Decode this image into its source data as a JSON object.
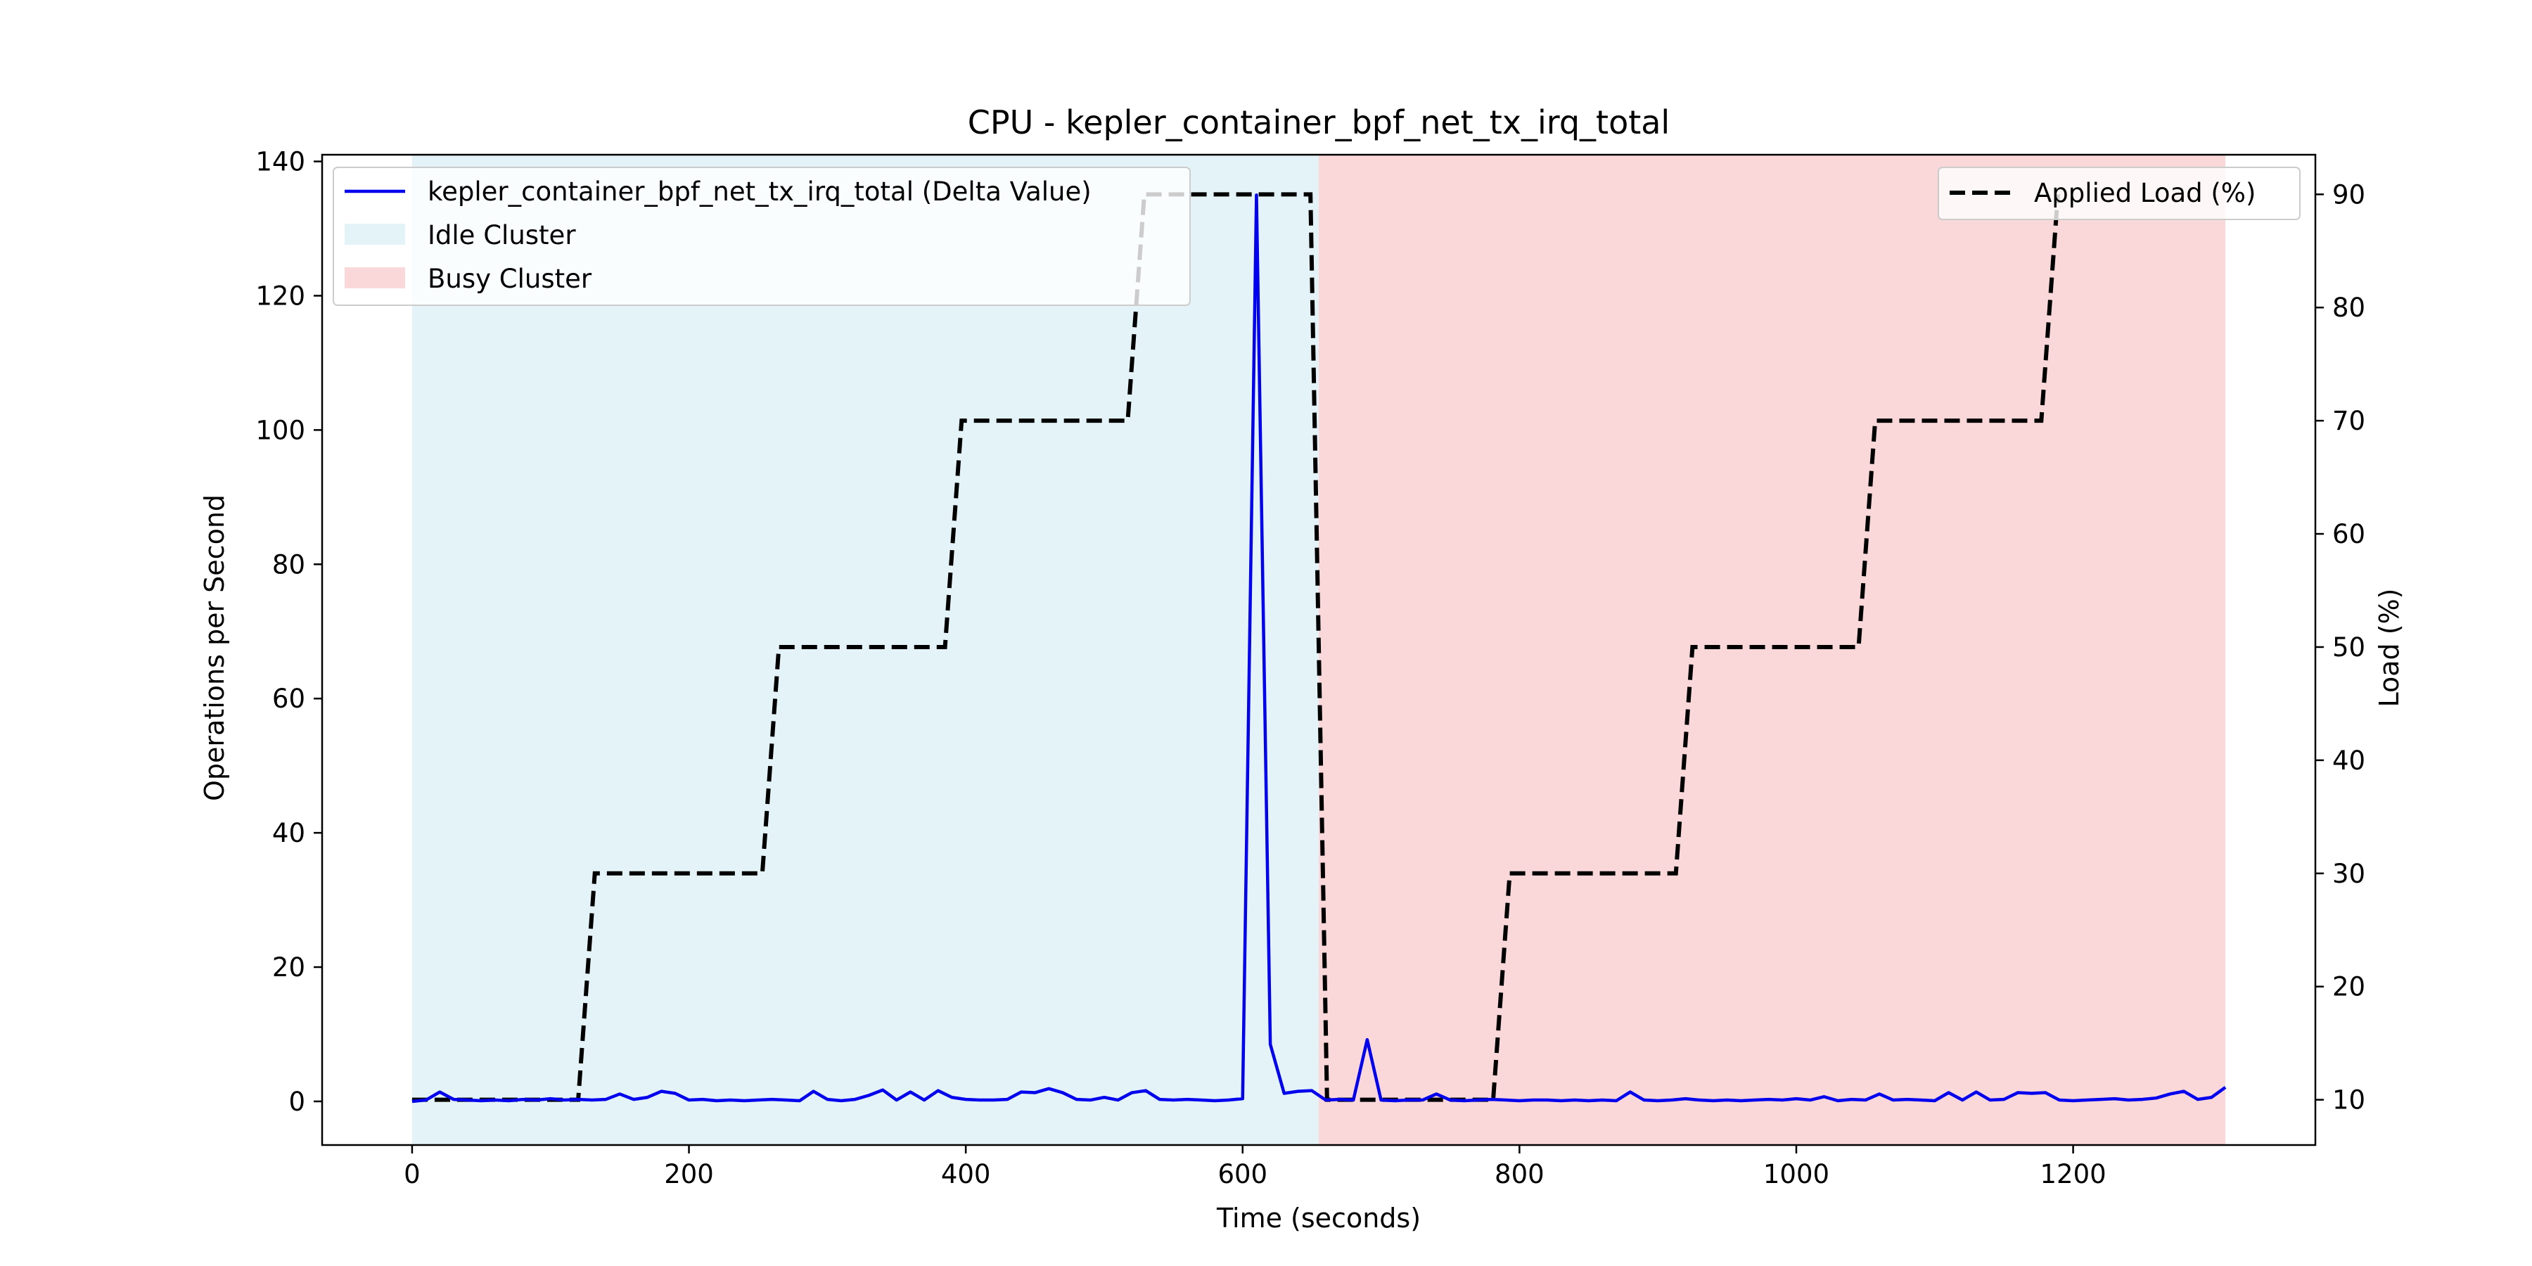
{
  "chart_data": {
    "type": "line",
    "title": "CPU - kepler_container_bpf_net_tx_irq_total",
    "xlabel": "Time (seconds)",
    "ylabel": "Operations per Second",
    "y2label": "Load (%)",
    "xlim": [
      -65,
      1375
    ],
    "ylim": [
      -6.5,
      141
    ],
    "y2lim": [
      6,
      93.5
    ],
    "xticks": [
      0,
      200,
      400,
      600,
      800,
      1000,
      1200
    ],
    "yticks": [
      0,
      20,
      40,
      60,
      80,
      100,
      120,
      140
    ],
    "y2ticks": [
      10,
      20,
      30,
      40,
      50,
      60,
      70,
      80,
      90
    ],
    "grid": false,
    "colors": {
      "metric": "#0000ee",
      "load": "#000000",
      "idle": "#e4f3f7",
      "busy": "#fad8d9",
      "ylabel": "#0000ee"
    },
    "regions": [
      {
        "name": "Idle Cluster",
        "x0": 0,
        "x1": 655,
        "color": "#e4f3f7"
      },
      {
        "name": "Busy Cluster",
        "x0": 655,
        "x1": 1310,
        "color": "#fad8d9"
      }
    ],
    "legend_left": {
      "placement": "upper-left",
      "entries": [
        {
          "label": "kepler_container_bpf_net_tx_irq_total (Delta Value)",
          "kind": "line"
        },
        {
          "label": "Idle Cluster",
          "kind": "patch-idle"
        },
        {
          "label": "Busy Cluster",
          "kind": "patch-busy"
        }
      ]
    },
    "legend_right": {
      "placement": "upper-right",
      "entries": [
        {
          "label": "Applied Load (%)",
          "kind": "dashed"
        }
      ]
    },
    "series": [
      {
        "name": "kepler_container_bpf_net_tx_irq_total (Delta Value)",
        "axis": "left",
        "style": "solid",
        "x": [
          0,
          10,
          20,
          30,
          40,
          50,
          60,
          70,
          80,
          90,
          100,
          110,
          120,
          130,
          140,
          150,
          160,
          170,
          180,
          190,
          200,
          210,
          220,
          230,
          240,
          250,
          260,
          270,
          280,
          290,
          300,
          310,
          320,
          330,
          340,
          350,
          360,
          370,
          380,
          390,
          400,
          410,
          420,
          430,
          440,
          450,
          460,
          470,
          480,
          490,
          500,
          510,
          520,
          530,
          540,
          550,
          560,
          570,
          580,
          590,
          600,
          610,
          620,
          630,
          640,
          650,
          660,
          670,
          680,
          690,
          700,
          710,
          720,
          730,
          740,
          750,
          760,
          770,
          780,
          790,
          800,
          810,
          820,
          830,
          840,
          850,
          860,
          870,
          880,
          890,
          900,
          910,
          920,
          930,
          940,
          950,
          960,
          970,
          980,
          990,
          1000,
          1010,
          1020,
          1030,
          1040,
          1050,
          1060,
          1070,
          1080,
          1090,
          1100,
          1110,
          1120,
          1130,
          1140,
          1150,
          1160,
          1170,
          1180,
          1190,
          1200,
          1210,
          1220,
          1230,
          1240,
          1250,
          1260,
          1270,
          1280,
          1290,
          1300,
          1310
        ],
        "y": [
          0,
          0.2,
          1.4,
          0.3,
          0.2,
          0.1,
          0.2,
          0.1,
          0.3,
          0.2,
          0.4,
          0.2,
          0.3,
          0.2,
          0.3,
          1.1,
          0.3,
          0.6,
          1.5,
          1.2,
          0.2,
          0.3,
          0.1,
          0.2,
          0.1,
          0.2,
          0.3,
          0.2,
          0.1,
          1.5,
          0.3,
          0.1,
          0.3,
          0.9,
          1.7,
          0.2,
          1.4,
          0.2,
          1.6,
          0.6,
          0.3,
          0.2,
          0.2,
          0.3,
          1.4,
          1.3,
          1.9,
          1.3,
          0.3,
          0.2,
          0.6,
          0.2,
          1.3,
          1.6,
          0.3,
          0.2,
          0.3,
          0.2,
          0.1,
          0.2,
          0.4,
          135,
          8.5,
          1.2,
          1.5,
          1.6,
          0.2,
          0.3,
          0.2,
          9.2,
          0.2,
          0.1,
          0.2,
          0.2,
          1.1,
          0.2,
          0.1,
          0.2,
          0.3,
          0.2,
          0.1,
          0.2,
          0.2,
          0.1,
          0.2,
          0.1,
          0.2,
          0.1,
          1.4,
          0.2,
          0.1,
          0.2,
          0.4,
          0.2,
          0.1,
          0.2,
          0.1,
          0.2,
          0.3,
          0.2,
          0.4,
          0.2,
          0.7,
          0.1,
          0.3,
          0.2,
          1.1,
          0.2,
          0.3,
          0.2,
          0.1,
          1.3,
          0.2,
          1.4,
          0.2,
          0.3,
          1.3,
          1.2,
          1.3,
          0.2,
          0.1,
          0.2,
          0.3,
          0.4,
          0.2,
          0.3,
          0.5,
          1.1,
          1.5,
          0.3,
          0.6,
          2.1
        ]
      },
      {
        "name": "Applied Load (%)",
        "axis": "right",
        "style": "dashed",
        "x": [
          0,
          120,
          132,
          253,
          265,
          385,
          397,
          517,
          529,
          649,
          661,
          781,
          793,
          913,
          925,
          1045,
          1057,
          1177,
          1189
        ],
        "y": [
          10,
          10,
          30,
          30,
          50,
          50,
          70,
          70,
          90,
          90,
          10,
          10,
          30,
          30,
          50,
          50,
          70,
          70,
          90
        ]
      }
    ]
  }
}
